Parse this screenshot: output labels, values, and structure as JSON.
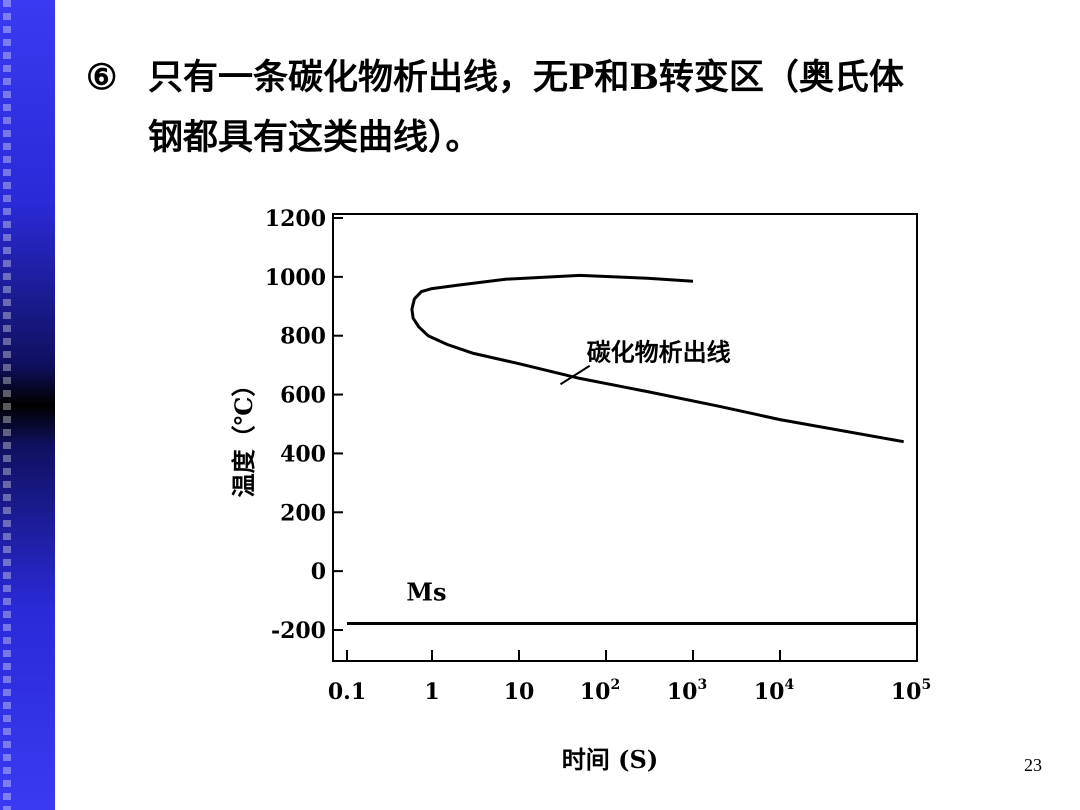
{
  "slide": {
    "bullet": "⑥",
    "text_line1": "只有一条碳化物析出线，无P和B转变区（奥氏体",
    "text_line2": "钢都具有这类曲线）。",
    "page_number": "23"
  },
  "colors": {
    "sidebar": "#2a2ad8",
    "line": "#000000"
  },
  "chart_data": {
    "type": "line",
    "xscale": "log",
    "xlim": [
      0.1,
      100000
    ],
    "ylim": [
      -200,
      1200
    ],
    "xlabel": "时间 (S)",
    "ylabel": "温度（℃）",
    "x_ticks": [
      {
        "value": 0.1,
        "label": "0.1"
      },
      {
        "value": 1,
        "label": "1"
      },
      {
        "value": 10,
        "label": "10"
      },
      {
        "value": 100,
        "label": "10",
        "exp": "2"
      },
      {
        "value": 1000,
        "label": "10",
        "exp": "3"
      },
      {
        "value": 10000,
        "label": "10",
        "exp": "4"
      },
      {
        "value": 100000,
        "label": "10",
        "exp": "5"
      }
    ],
    "y_ticks": [
      {
        "value": 1200,
        "label": "1200"
      },
      {
        "value": 1000,
        "label": "1000"
      },
      {
        "value": 800,
        "label": "800"
      },
      {
        "value": 600,
        "label": "600"
      },
      {
        "value": 400,
        "label": "400"
      },
      {
        "value": 200,
        "label": "200"
      },
      {
        "value": 0,
        "label": "0"
      },
      {
        "value": -200,
        "label": "-200"
      }
    ],
    "series": [
      {
        "name": "碳化物析出线",
        "points": [
          [
            1000,
            985
          ],
          [
            300,
            995
          ],
          [
            50,
            1005
          ],
          [
            7,
            992
          ],
          [
            2,
            972
          ],
          [
            1,
            960
          ],
          [
            0.75,
            950
          ],
          [
            0.62,
            925
          ],
          [
            0.58,
            890
          ],
          [
            0.6,
            860
          ],
          [
            0.7,
            830
          ],
          [
            0.9,
            800
          ],
          [
            1.5,
            770
          ],
          [
            3,
            740
          ],
          [
            10,
            705
          ],
          [
            50,
            655
          ],
          [
            300,
            610
          ],
          [
            2000,
            560
          ],
          [
            10000,
            515
          ],
          [
            80000,
            440
          ]
        ]
      },
      {
        "name": "Ms",
        "points": [
          [
            0.1,
            -178
          ],
          [
            100000,
            -178
          ]
        ]
      }
    ],
    "annotations": [
      {
        "text": "碳化物析出线",
        "x": 60,
        "y": 715,
        "target": [
          30,
          635
        ]
      },
      {
        "text": "Ms",
        "x": 0.5,
        "y": -100
      }
    ]
  }
}
